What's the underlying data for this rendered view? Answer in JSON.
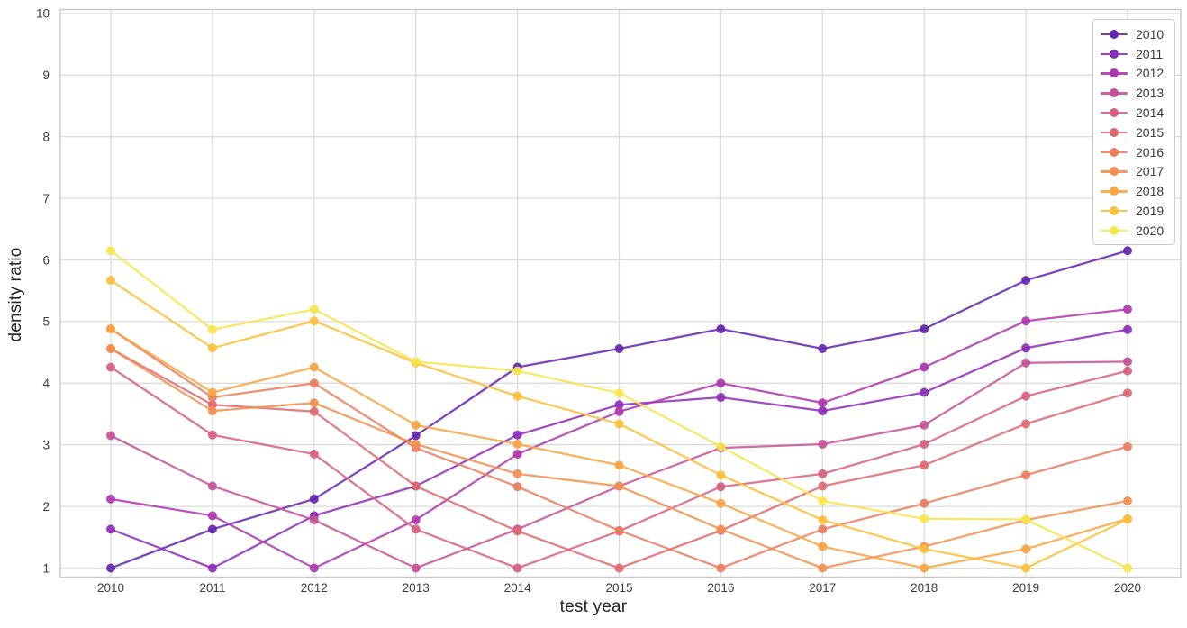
{
  "figure": {
    "background": "#ffffff",
    "grid_color": "#dcdcdc",
    "spine_color": "#c9c9c9",
    "tick_text_color": "#3d3d3d",
    "axis_label_color": "#262626"
  },
  "axes": {
    "x_label": "test year",
    "y_label": "density ratio",
    "x_tick_labels": [
      "2010",
      "2011",
      "2012",
      "2013",
      "2014",
      "2015",
      "2016",
      "2017",
      "2018",
      "2019",
      "2020"
    ],
    "y_tick_labels": [
      "1",
      "2",
      "3",
      "4",
      "5",
      "6",
      "7",
      "8",
      "9",
      "10"
    ]
  },
  "legend": {
    "entries": [
      "2010",
      "2011",
      "2012",
      "2013",
      "2014",
      "2015",
      "2016",
      "2017",
      "2018",
      "2019",
      "2020"
    ]
  },
  "chart_data": {
    "type": "line",
    "title": "",
    "xlabel": "test year",
    "ylabel": "density ratio",
    "x": [
      2010,
      2011,
      2012,
      2013,
      2014,
      2015,
      2016,
      2017,
      2018,
      2019,
      2020
    ],
    "ylim": [
      1,
      10
    ],
    "xlim": [
      2009.5,
      2020.5
    ],
    "grid": true,
    "legend_position": "upper right",
    "marker": "circle",
    "series": [
      {
        "name": "2010",
        "color": "#6527b0",
        "values": [
          1.0,
          1.63,
          2.12,
          3.15,
          4.26,
          4.56,
          4.88,
          4.56,
          4.88,
          5.67,
          6.15
        ]
      },
      {
        "name": "2011",
        "color": "#8c2fb8",
        "values": [
          1.63,
          1.0,
          1.85,
          2.33,
          3.16,
          3.65,
          3.77,
          3.55,
          3.85,
          4.57,
          4.87
        ]
      },
      {
        "name": "2012",
        "color": "#ac39ab",
        "values": [
          2.12,
          1.85,
          1.0,
          1.78,
          2.85,
          3.54,
          4.0,
          3.68,
          4.26,
          5.01,
          5.2
        ]
      },
      {
        "name": "2013",
        "color": "#c65297",
        "values": [
          3.15,
          2.33,
          1.78,
          1.0,
          1.63,
          2.33,
          2.95,
          3.01,
          3.32,
          4.33,
          4.35
        ]
      },
      {
        "name": "2014",
        "color": "#d66280",
        "values": [
          4.26,
          3.16,
          2.85,
          1.63,
          1.0,
          1.6,
          2.32,
          2.53,
          3.01,
          3.79,
          4.2
        ]
      },
      {
        "name": "2015",
        "color": "#de6a71",
        "values": [
          4.56,
          3.65,
          3.54,
          2.33,
          1.6,
          1.0,
          1.61,
          2.33,
          2.67,
          3.34,
          3.84
        ]
      },
      {
        "name": "2016",
        "color": "#e97e60",
        "values": [
          4.88,
          3.77,
          4.0,
          2.95,
          2.32,
          1.61,
          1.0,
          1.63,
          2.05,
          2.51,
          2.97
        ]
      },
      {
        "name": "2017",
        "color": "#f19050",
        "values": [
          4.56,
          3.55,
          3.68,
          3.01,
          2.53,
          2.33,
          1.63,
          1.0,
          1.35,
          1.78,
          2.09
        ]
      },
      {
        "name": "2018",
        "color": "#f8a443",
        "values": [
          4.88,
          3.85,
          4.26,
          3.32,
          3.01,
          2.67,
          2.05,
          1.35,
          1.0,
          1.31,
          1.8
        ]
      },
      {
        "name": "2019",
        "color": "#fcbf3b",
        "values": [
          5.67,
          4.57,
          5.01,
          4.33,
          3.79,
          3.34,
          2.51,
          1.78,
          1.31,
          1.0,
          1.79
        ]
      },
      {
        "name": "2020",
        "color": "#f8e44d",
        "values": [
          6.15,
          4.87,
          5.2,
          4.35,
          4.2,
          3.84,
          2.97,
          2.09,
          1.8,
          1.79,
          1.0
        ]
      }
    ]
  }
}
